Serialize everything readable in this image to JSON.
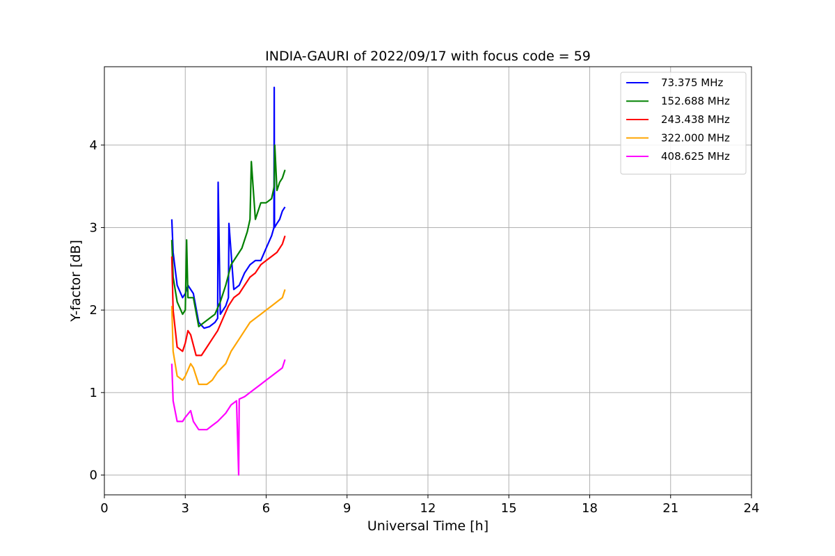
{
  "chart_data": {
    "type": "line",
    "title": "INDIA-GAURI of 2022/09/17 with focus code = 59",
    "xlabel": "Universal Time [h]",
    "ylabel": "Y-factor [dB]",
    "xlim": [
      0,
      24
    ],
    "ylim": [
      -0.24,
      4.95
    ],
    "xticks": [
      0,
      3,
      6,
      9,
      12,
      15,
      18,
      21,
      24
    ],
    "yticks": [
      0,
      1,
      2,
      3,
      4
    ],
    "grid": true,
    "legend_position": "top-right",
    "series": [
      {
        "name": " 73.375 MHz",
        "color": "#0000ff",
        "x": [
          2.5,
          2.55,
          2.7,
          2.9,
          3.0,
          3.1,
          3.3,
          3.5,
          3.7,
          3.9,
          4.1,
          4.2,
          4.22,
          4.3,
          4.5,
          4.6,
          4.62,
          4.8,
          5.0,
          5.2,
          5.4,
          5.6,
          5.8,
          6.0,
          6.2,
          6.29,
          6.3,
          6.31,
          6.4,
          6.5,
          6.6,
          6.7
        ],
        "y": [
          3.1,
          2.7,
          2.3,
          2.15,
          2.2,
          2.3,
          2.2,
          1.85,
          1.78,
          1.8,
          1.85,
          1.9,
          3.55,
          1.95,
          2.05,
          2.15,
          3.05,
          2.25,
          2.3,
          2.45,
          2.55,
          2.6,
          2.6,
          2.75,
          2.9,
          3.0,
          4.7,
          3.0,
          3.05,
          3.1,
          3.2,
          3.25
        ]
      },
      {
        "name": "152.688 MHz",
        "color": "#008000",
        "x": [
          2.5,
          2.55,
          2.7,
          2.9,
          3.0,
          3.05,
          3.1,
          3.3,
          3.5,
          3.7,
          3.9,
          4.1,
          4.3,
          4.5,
          4.7,
          4.9,
          5.1,
          5.3,
          5.4,
          5.45,
          5.6,
          5.8,
          6.0,
          6.2,
          6.3,
          6.32,
          6.4,
          6.5,
          6.6,
          6.7
        ],
        "y": [
          2.85,
          2.4,
          2.1,
          1.95,
          2.0,
          2.85,
          2.15,
          2.15,
          1.8,
          1.85,
          1.9,
          1.95,
          2.1,
          2.3,
          2.55,
          2.65,
          2.75,
          2.95,
          3.1,
          3.8,
          3.1,
          3.3,
          3.3,
          3.35,
          3.5,
          4.0,
          3.45,
          3.55,
          3.6,
          3.7
        ]
      },
      {
        "name": "243.438 MHz",
        "color": "#ff0000",
        "x": [
          2.5,
          2.55,
          2.7,
          2.9,
          3.0,
          3.1,
          3.2,
          3.4,
          3.6,
          3.8,
          4.0,
          4.2,
          4.4,
          4.6,
          4.8,
          5.0,
          5.2,
          5.4,
          5.6,
          5.8,
          6.0,
          6.2,
          6.4,
          6.6,
          6.7
        ],
        "y": [
          2.65,
          2.0,
          1.55,
          1.5,
          1.6,
          1.75,
          1.7,
          1.45,
          1.45,
          1.55,
          1.65,
          1.75,
          1.9,
          2.05,
          2.15,
          2.2,
          2.3,
          2.4,
          2.45,
          2.55,
          2.6,
          2.65,
          2.7,
          2.8,
          2.9
        ]
      },
      {
        "name": "322.000 MHz",
        "color": "#ffa500",
        "x": [
          2.5,
          2.55,
          2.7,
          2.9,
          3.0,
          3.2,
          3.3,
          3.5,
          3.8,
          4.0,
          4.2,
          4.5,
          4.7,
          4.9,
          5.0,
          5.2,
          5.4,
          5.6,
          5.8,
          6.0,
          6.2,
          6.4,
          6.6,
          6.7
        ],
        "y": [
          2.05,
          1.5,
          1.2,
          1.15,
          1.2,
          1.35,
          1.3,
          1.1,
          1.1,
          1.15,
          1.25,
          1.35,
          1.5,
          1.6,
          1.65,
          1.75,
          1.85,
          1.9,
          1.95,
          2.0,
          2.05,
          2.1,
          2.15,
          2.25
        ]
      },
      {
        "name": "408.625 MHz",
        "color": "#ff00ff",
        "x": [
          2.5,
          2.55,
          2.7,
          2.9,
          3.0,
          3.2,
          3.3,
          3.5,
          3.8,
          4.0,
          4.2,
          4.5,
          4.7,
          4.9,
          4.98,
          5.0,
          5.2,
          5.4,
          5.6,
          5.8,
          6.0,
          6.2,
          6.4,
          6.6,
          6.7
        ],
        "y": [
          1.35,
          0.9,
          0.65,
          0.65,
          0.7,
          0.78,
          0.65,
          0.55,
          0.55,
          0.6,
          0.65,
          0.75,
          0.85,
          0.9,
          0.0,
          0.92,
          0.95,
          1.0,
          1.05,
          1.1,
          1.15,
          1.2,
          1.25,
          1.3,
          1.4
        ]
      }
    ]
  }
}
